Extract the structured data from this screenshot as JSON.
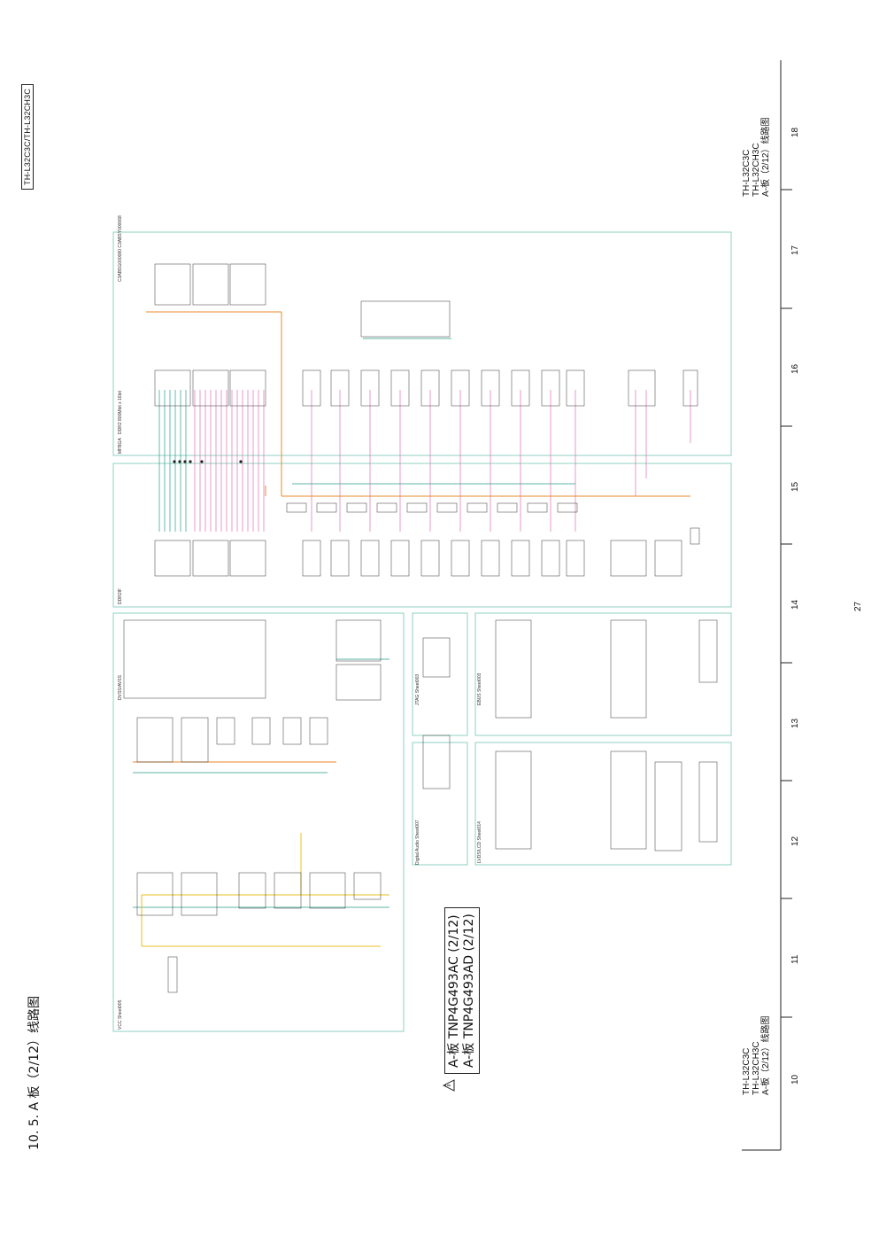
{
  "header": {
    "model_box": "TH-L32C3C/TH-L32CH3C"
  },
  "section": {
    "title": "10. 5.  A 板（2/12）线路图"
  },
  "board": {
    "line1": "A-板  TNP4G493AC (2/12)",
    "line2": "A-板  TNP4G493AD (2/12)"
  },
  "title_block_top": {
    "line1": "TH-L32C3C",
    "line2": "TH-L32CH3C",
    "line3": "A-板（2/12）线路图"
  },
  "title_block_bottom": {
    "line1": "TH-L32C3C",
    "line2": "TH-L32CH3C",
    "line3": "A-板（2/12）线路图"
  },
  "page_number": "27",
  "grid_numbers": [
    "10",
    "11",
    "12",
    "13",
    "14",
    "15",
    "16",
    "17",
    "18"
  ],
  "regions": {
    "vcc": "VCC Sheet005",
    "dvss": "DVSS/AVSS",
    "jtag": "JTAG Sheet003",
    "ebus": "EBUS Sheet003",
    "digital_audio": "Digital Audio Sheet007",
    "lvds": "LVDS/LCD Sheet014",
    "ddr2if": "DDR2IF",
    "mfbga": "MFBGA",
    "ddr2": "DDR2 800Mbit x 16bit",
    "ic_codes": "C3ABSG000080\nC3ABSY000068"
  },
  "colors": {
    "orange": "#e8882a",
    "teal": "#2a9a8a",
    "pink": "#e070b0",
    "yellow": "#e8c020",
    "frame": "#8fd0c0"
  }
}
